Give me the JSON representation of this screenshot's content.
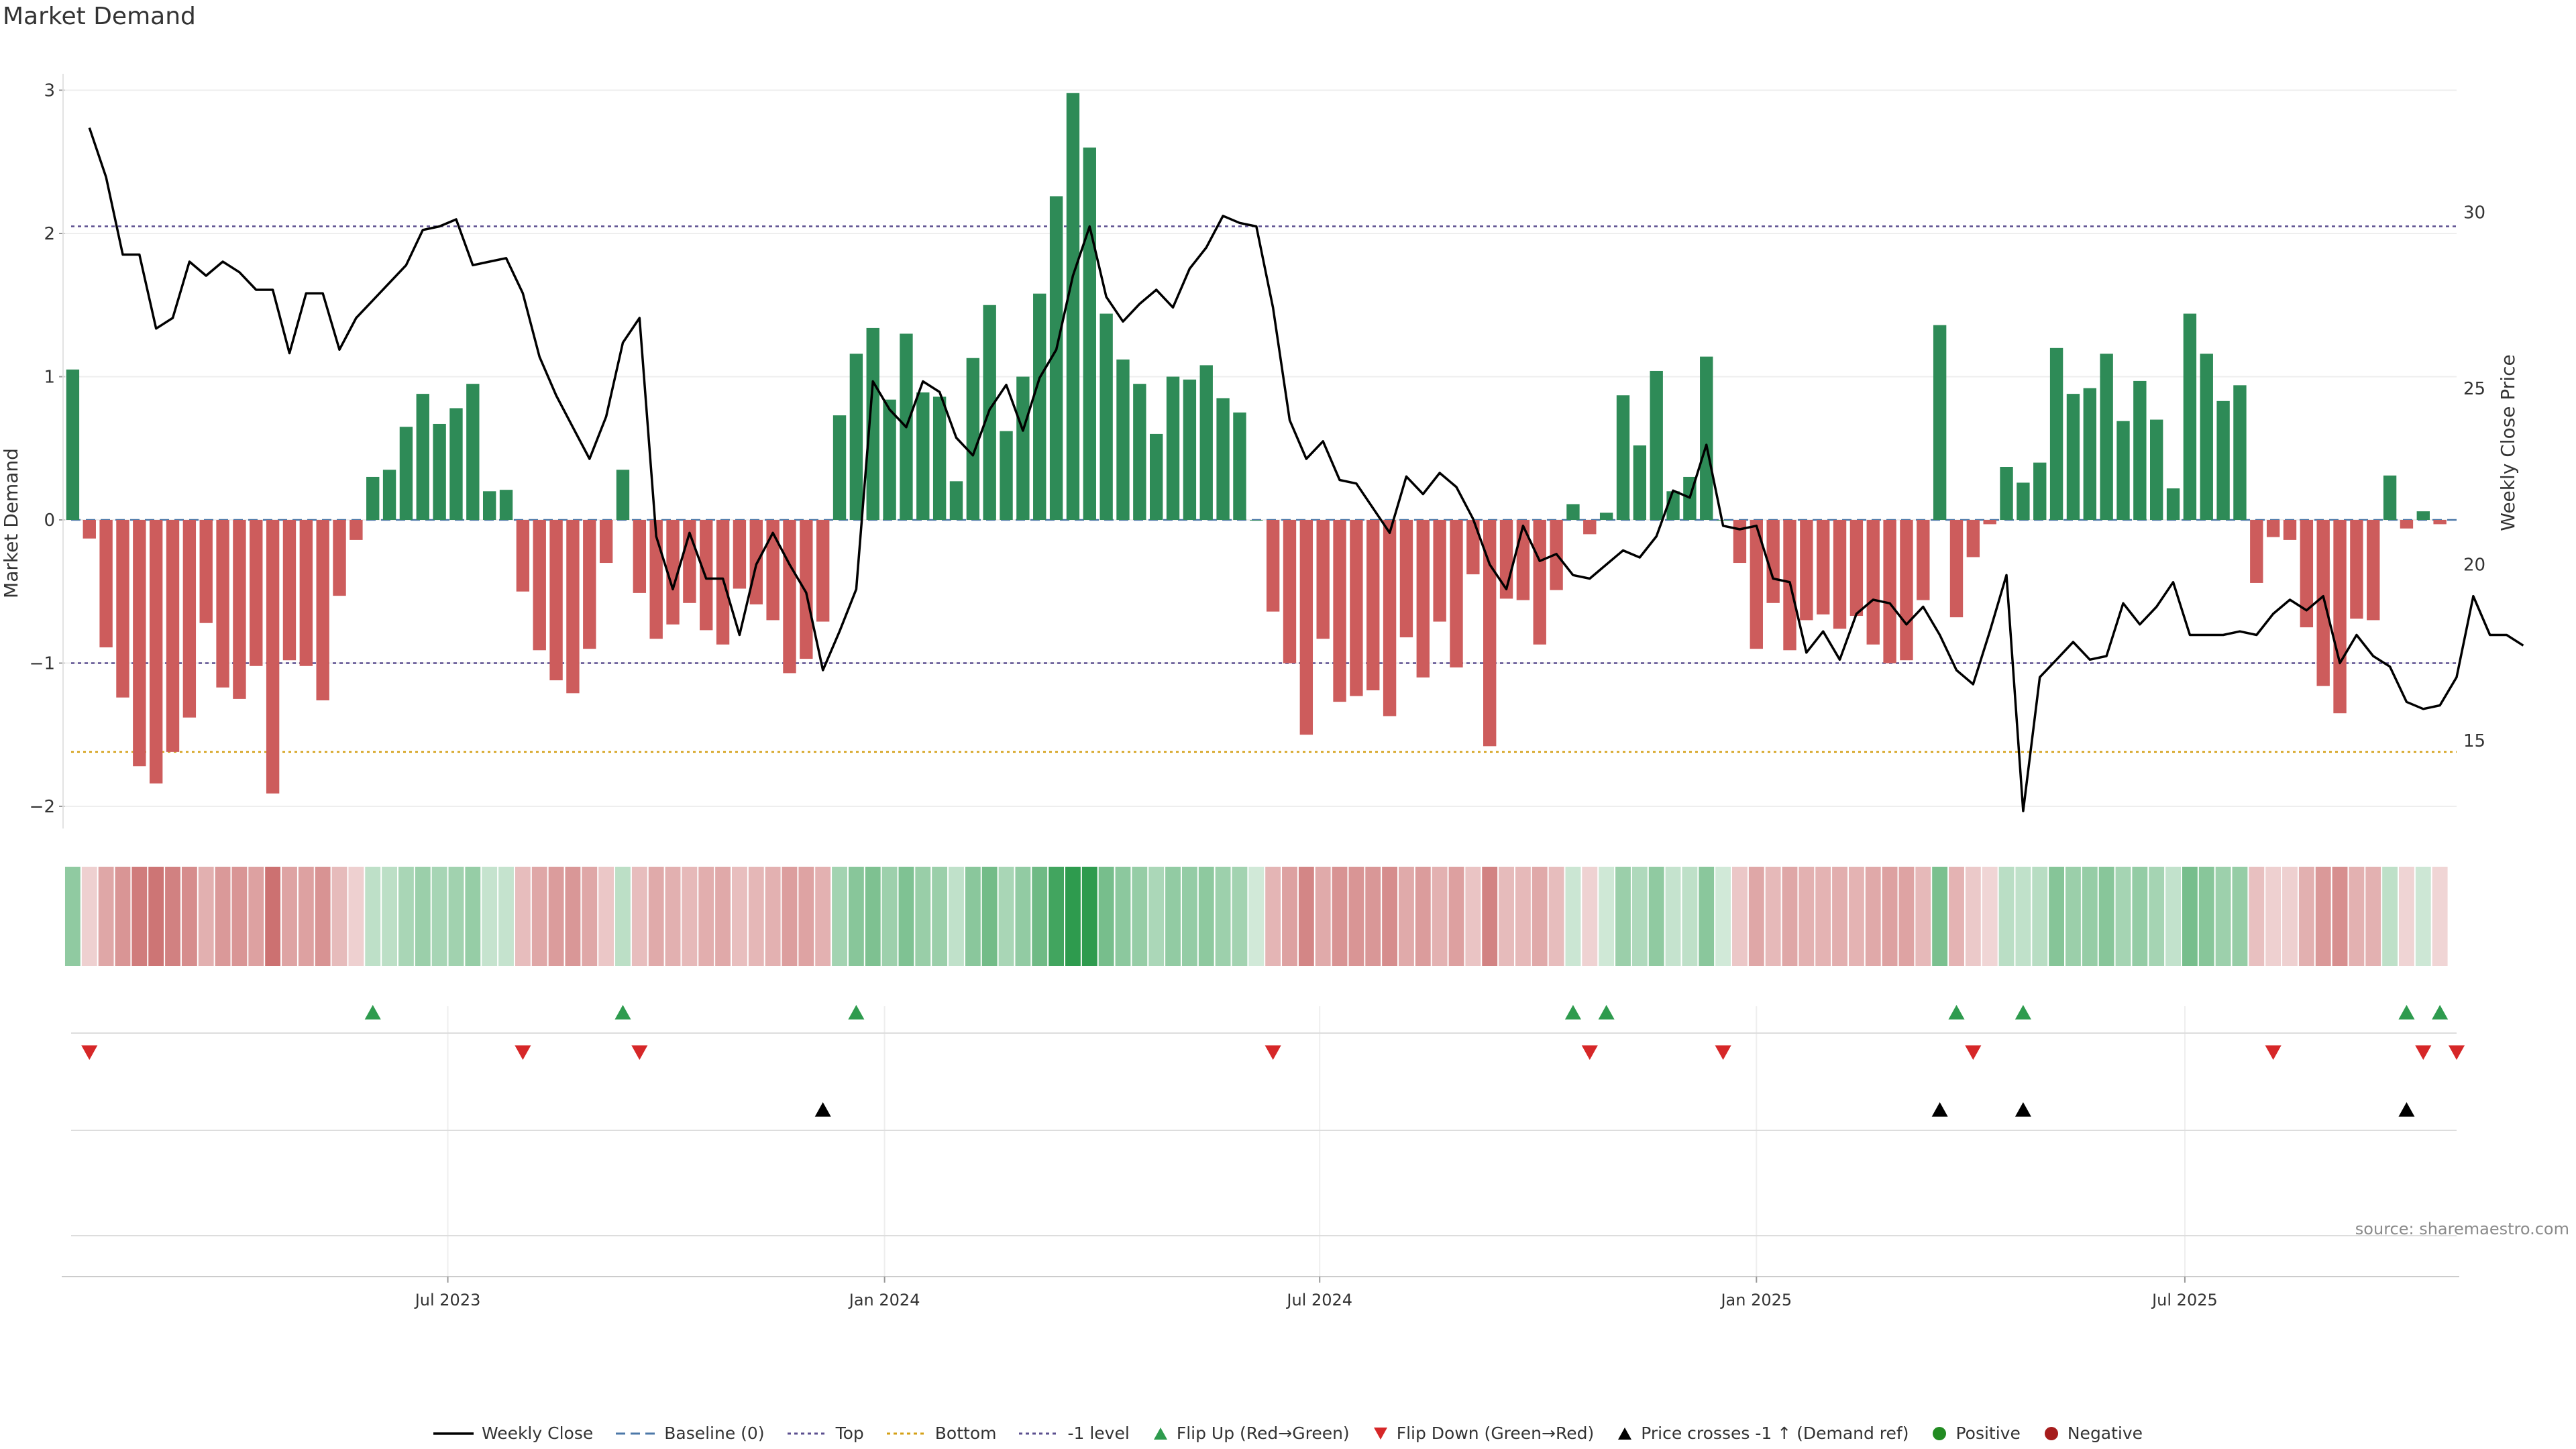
{
  "title": "Market Demand",
  "source": "source: sharemaestro.com",
  "chart_data": {
    "type": "bar",
    "title": "Market Demand",
    "ylabel": "Market Demand",
    "y2label": "Weekly Close Price",
    "ylim": [
      -2.1,
      3.05
    ],
    "y2lim": [
      12.9,
      33.7
    ],
    "yticks": [
      -2,
      -1,
      0,
      1,
      2,
      3
    ],
    "ytick_labels": [
      "−2",
      "−1",
      "0",
      "1",
      "2",
      "3"
    ],
    "y2ticks": [
      15,
      20,
      25,
      30
    ],
    "y2tick_labels": [
      "15",
      "20",
      "25",
      "30"
    ],
    "reference_lines": {
      "top": 2.05,
      "bottom": -1.62,
      "minus_one": -1.0,
      "baseline": 0
    },
    "x_range": [
      0,
      143.5
    ],
    "x_ticks": [
      {
        "label": "Jul 2023",
        "week": 22.5
      },
      {
        "label": "Jan 2024",
        "week": 48.7
      },
      {
        "label": "Jul 2024",
        "week": 74.8
      },
      {
        "label": "Jan 2025",
        "week": 101.0
      },
      {
        "label": "Jul 2025",
        "week": 126.7
      }
    ],
    "demand": [
      1.05,
      -0.13,
      -0.89,
      -1.24,
      -1.72,
      -1.84,
      -1.62,
      -1.38,
      -0.72,
      -1.17,
      -1.25,
      -1.02,
      -1.91,
      -0.98,
      -1.02,
      -1.26,
      -0.53,
      -0.14,
      0.3,
      0.35,
      0.65,
      0.88,
      0.67,
      0.78,
      0.95,
      0.2,
      0.21,
      -0.5,
      -0.91,
      -1.12,
      -1.21,
      -0.9,
      -0.3,
      0.35,
      -0.51,
      -0.83,
      -0.73,
      -0.58,
      -0.77,
      -0.87,
      -0.48,
      -0.59,
      -0.7,
      -1.07,
      -0.97,
      -0.71,
      0.73,
      1.16,
      1.34,
      0.84,
      1.3,
      0.89,
      0.86,
      0.27,
      1.13,
      1.5,
      0.62,
      1.0,
      1.58,
      2.26,
      2.98,
      2.6,
      1.44,
      1.12,
      0.95,
      0.6,
      1.0,
      0.98,
      1.08,
      0.85,
      0.75,
      0.0,
      -0.64,
      -1.0,
      -1.5,
      -0.83,
      -1.27,
      -1.23,
      -1.19,
      -1.37,
      -0.82,
      -1.1,
      -0.71,
      -1.03,
      -0.38,
      -1.58,
      -0.55,
      -0.56,
      -0.87,
      -0.49,
      0.11,
      -0.1,
      0.05,
      0.87,
      0.52,
      1.04,
      0.2,
      0.3,
      1.14,
      0.0,
      -0.3,
      -0.9,
      -0.58,
      -0.91,
      -0.7,
      -0.66,
      -0.76,
      -0.67,
      -0.87,
      -1.0,
      -0.98,
      -0.56,
      1.36,
      -0.68,
      -0.26,
      -0.03,
      0.37,
      0.26,
      0.4,
      1.2,
      0.88,
      0.92,
      1.16,
      0.69,
      0.97,
      0.7,
      0.22,
      1.44,
      1.16,
      0.83,
      0.94,
      -0.44,
      -0.12,
      -0.14,
      -0.75,
      -1.16,
      -1.35,
      -0.69,
      -0.7,
      0.31,
      -0.06,
      0.06,
      -0.03
    ],
    "price": [
      null,
      32.4,
      31.0,
      28.8,
      28.8,
      26.7,
      27.0,
      28.6,
      28.2,
      28.6,
      28.3,
      27.8,
      27.8,
      26.0,
      27.7,
      27.7,
      26.1,
      27.0,
      27.5,
      28.0,
      28.5,
      29.5,
      29.6,
      29.8,
      28.5,
      28.6,
      28.7,
      27.7,
      25.9,
      24.8,
      23.9,
      23.0,
      24.2,
      26.3,
      27.0,
      20.8,
      19.3,
      20.9,
      19.6,
      19.6,
      18.0,
      20.0,
      20.9,
      20.0,
      19.2,
      17.0,
      18.1,
      19.3,
      25.2,
      24.4,
      23.9,
      25.2,
      24.9,
      23.6,
      23.1,
      24.4,
      25.1,
      23.8,
      25.3,
      26.1,
      28.2,
      29.6,
      27.6,
      26.9,
      27.4,
      27.8,
      27.3,
      28.4,
      29.0,
      29.9,
      29.7,
      29.6,
      27.3,
      24.1,
      23.0,
      23.5,
      22.4,
      22.3,
      21.6,
      20.9,
      22.5,
      22.0,
      22.6,
      22.2,
      21.3,
      20.0,
      19.3,
      21.1,
      20.1,
      20.3,
      19.7,
      19.6,
      20.0,
      20.4,
      20.2,
      20.8,
      22.1,
      21.9,
      23.4,
      21.1,
      21.0,
      21.1,
      19.6,
      19.5,
      17.5,
      18.1,
      17.3,
      18.6,
      19.0,
      18.9,
      18.3,
      18.8,
      18.0,
      17.0,
      16.6,
      18.1,
      19.7,
      13.0,
      16.8,
      17.3,
      17.8,
      17.3,
      17.4,
      18.9,
      18.3,
      18.8,
      19.5,
      18.0,
      18.0,
      18.0,
      18.1,
      18.0,
      18.6,
      19.0,
      18.7,
      19.1,
      17.2,
      18.0,
      17.4,
      17.1,
      16.1,
      15.9,
      16.0,
      16.8,
      19.1,
      18.0,
      18.0,
      17.7
    ],
    "flip_up_weeks": [
      18,
      33,
      47,
      90,
      92,
      113,
      117,
      140,
      142
    ],
    "flip_down_weeks": [
      1,
      27,
      34,
      72,
      91,
      99,
      114,
      132,
      141,
      143
    ],
    "price_cross_weeks": [
      45,
      112,
      117,
      140
    ],
    "legend": [
      {
        "label": "Weekly Close",
        "kind": "line-solid",
        "color": "#000000"
      },
      {
        "label": "Baseline (0)",
        "kind": "line-dashed",
        "color": "#4c78a8"
      },
      {
        "label": "Top",
        "kind": "line-dotted",
        "color": "#5b4f8f"
      },
      {
        "label": "Bottom",
        "kind": "line-dotted",
        "color": "#d4a017"
      },
      {
        "label": "-1 level",
        "kind": "line-dotted",
        "color": "#5b4f8f"
      },
      {
        "label": "Flip Up (Red→Green)",
        "kind": "tri-up",
        "color": "#2e9b4e"
      },
      {
        "label": "Flip Down (Green→Red)",
        "kind": "tri-down",
        "color": "#d62728"
      },
      {
        "label": "Price crosses -1 ↑ (Demand ref)",
        "kind": "tri-up",
        "color": "#000000"
      },
      {
        "label": "Positive",
        "kind": "dot",
        "color": "#228b22"
      },
      {
        "label": "Negative",
        "kind": "dot",
        "color": "#a61c1c"
      }
    ],
    "colors": {
      "positive_bar": "#2e8b57",
      "negative_bar": "#cd5c5c",
      "price_line": "#000000"
    }
  }
}
